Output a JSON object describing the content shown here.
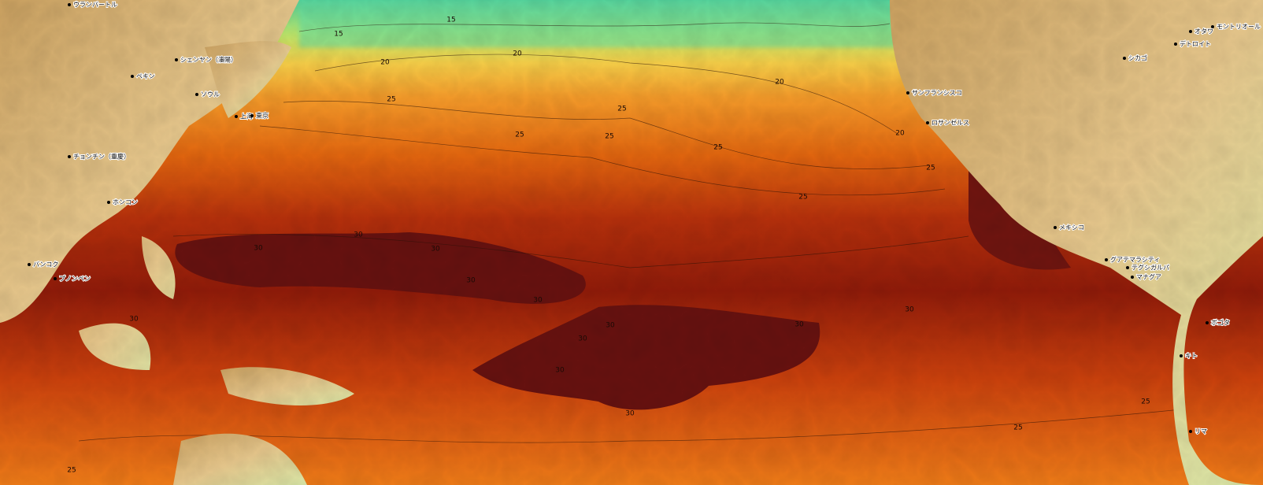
{
  "cities": [
    "ウランバートル",
    "ペキン",
    "シェンヤン（瀋陽）",
    "ソウル",
    "上海",
    "東京",
    "チョンチン（重慶）",
    "ホンコン",
    "バンコク",
    "プノンペン",
    "サンフランシスコ",
    "ロサンゼルス",
    "シカゴ",
    "デトロイト",
    "オタワ",
    "モントリオール",
    "メキシコ",
    "グアテマラシティ",
    "テグシガルパ",
    "マナグア",
    "ボゴタ",
    "キト",
    "リマ"
  ],
  "contour_labels": [
    15,
    15,
    20,
    20,
    20,
    20,
    25,
    25,
    25,
    25,
    25,
    25,
    25,
    25,
    25,
    25,
    30,
    30,
    30,
    30,
    30,
    30,
    30,
    30,
    30,
    30,
    30,
    30
  ]
}
